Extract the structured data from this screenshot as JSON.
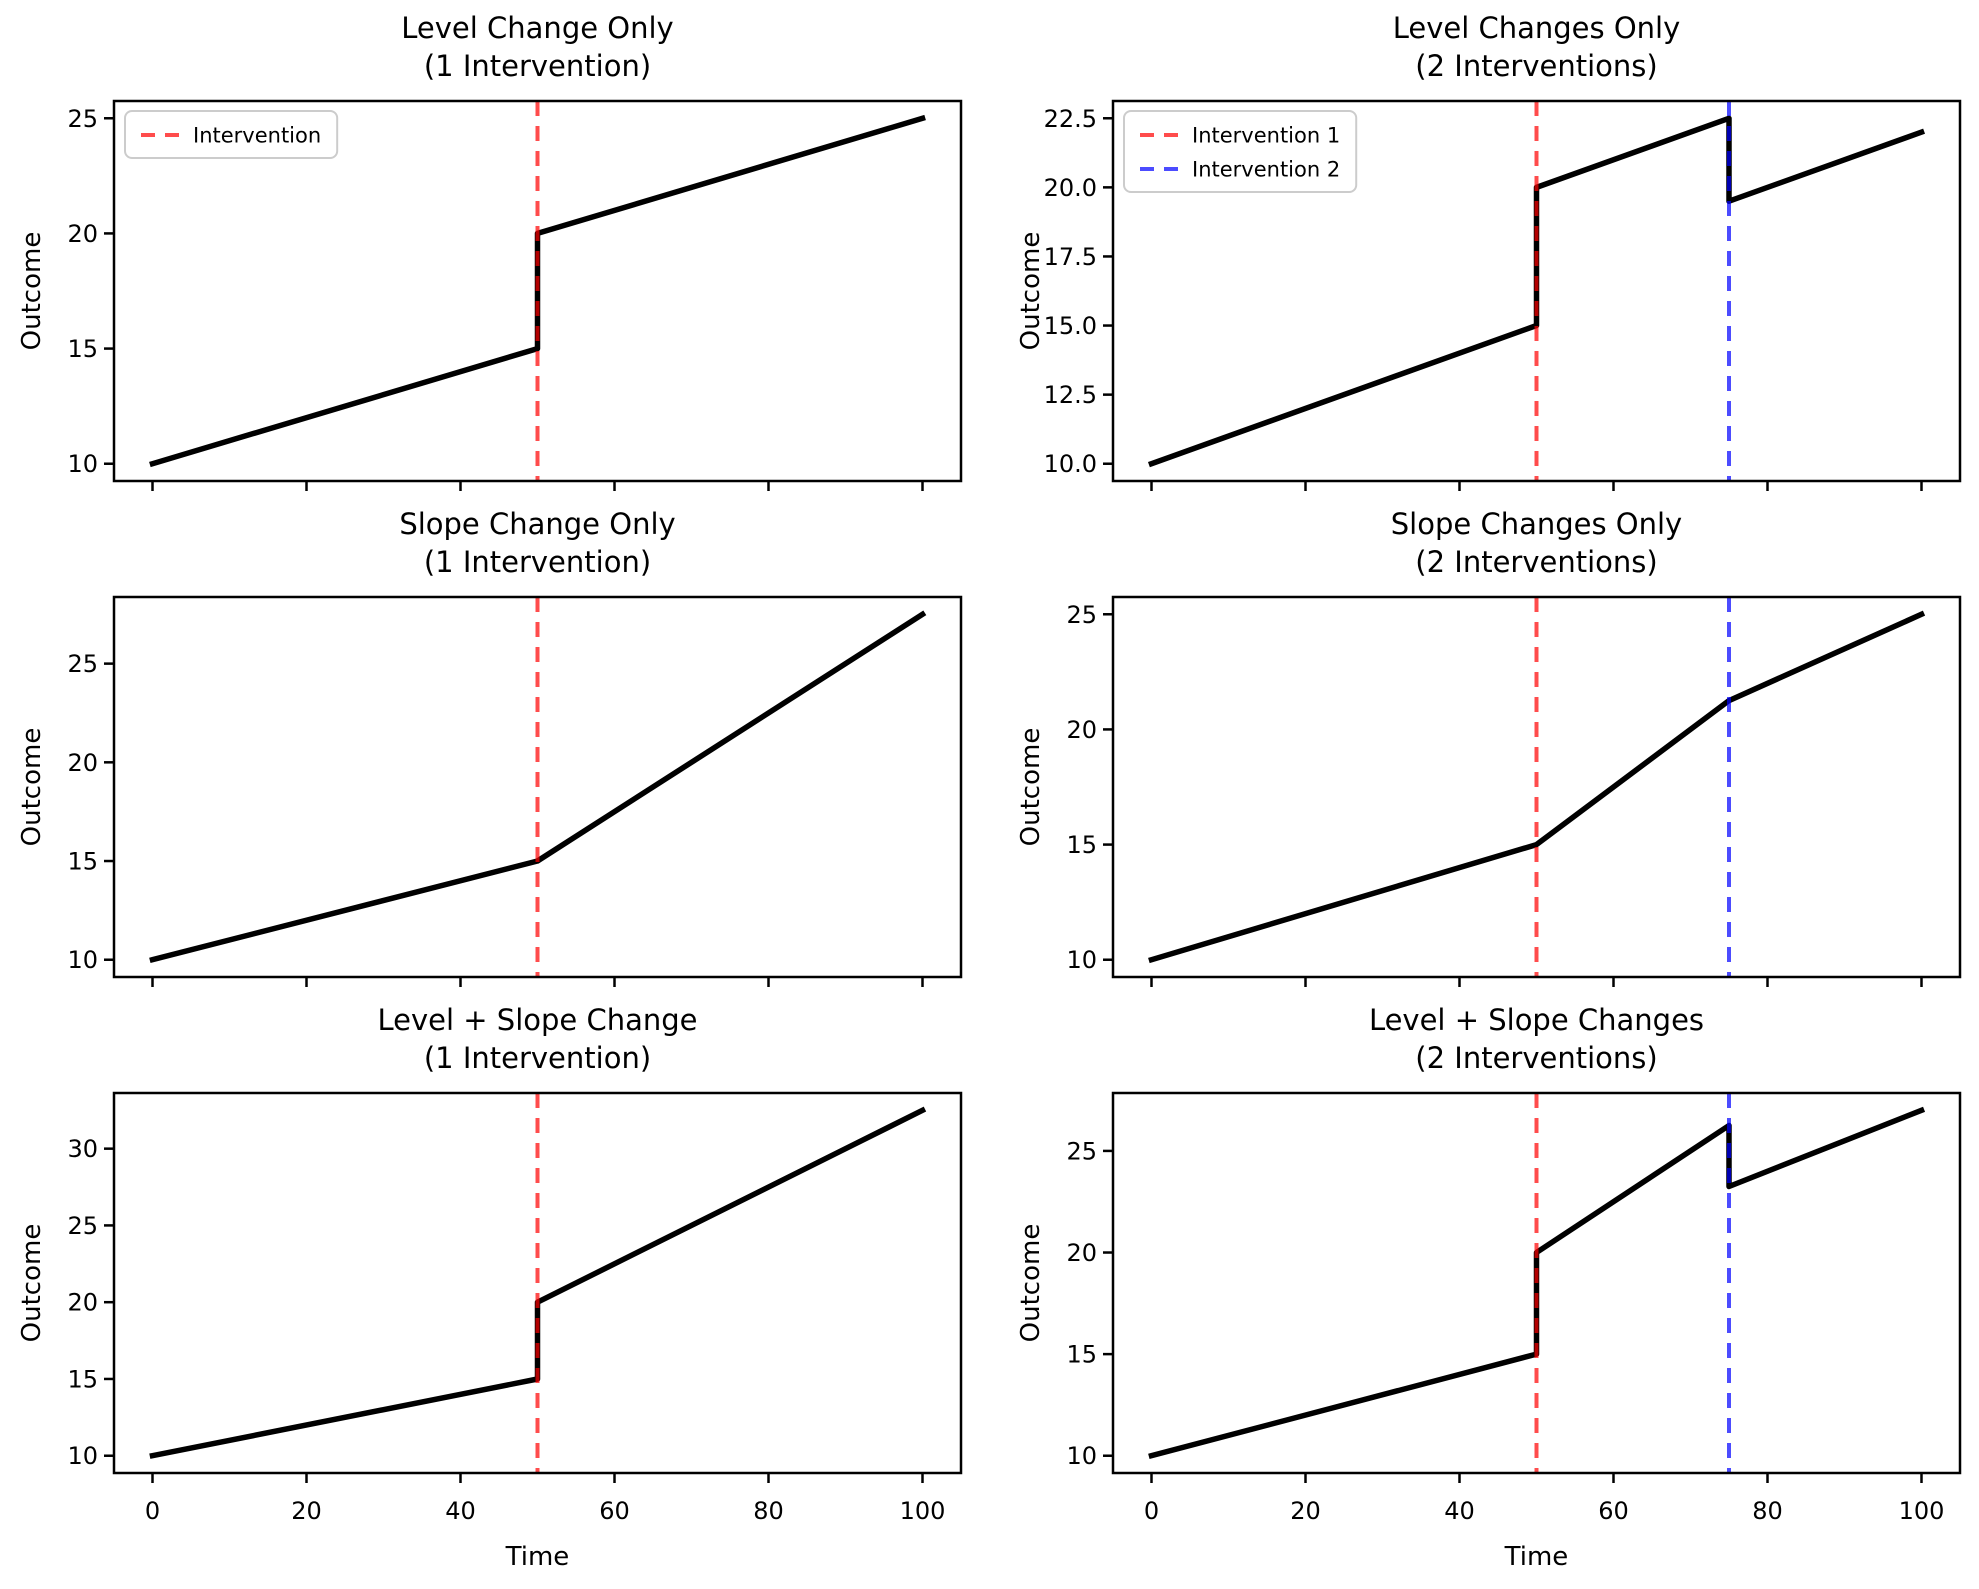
{
  "figure": {
    "background": "#ffffff",
    "grid": "3 rows x 2 columns",
    "description": "Interrupted time series intervention patterns"
  },
  "colors": {
    "series_line": "#000000",
    "intervention_1": "rgba(255,0,0,0.7)",
    "intervention_2": "rgba(0,0,255,0.7)",
    "legend_border": "#cccccc",
    "legend_background": "#ffffff",
    "axes_frame": "#000000"
  },
  "chart_data": [
    {
      "type": "line",
      "title": "Level Change Only",
      "subtitle": "(1 Intervention)",
      "ylabel": "Outcome",
      "xlim": [
        -5,
        105
      ],
      "ylim": [
        9.25,
        25.75
      ],
      "x_ticks": [
        0,
        20,
        40,
        60,
        80,
        100
      ],
      "x_tick_labels": [],
      "y_ticks": [
        10,
        15,
        20,
        25
      ],
      "y_tick_labels": [
        "10",
        "15",
        "20",
        "25"
      ],
      "series": [
        {
          "name": "Outcome",
          "color": "#000000",
          "points": [
            [
              0,
              10
            ],
            [
              50,
              15
            ],
            [
              50,
              20
            ],
            [
              100,
              25
            ]
          ]
        }
      ],
      "interventions": [
        {
          "x": 50,
          "color": "rgba(255,0,0,0.7)",
          "label": "Intervention"
        }
      ],
      "legend": {
        "visible": true,
        "entries": [
          {
            "label": "Intervention",
            "color": "rgba(255,0,0,0.7)"
          }
        ]
      }
    },
    {
      "type": "line",
      "title": "Level Changes Only",
      "subtitle": "(2 Interventions)",
      "ylabel": "Outcome",
      "xlim": [
        -5,
        105
      ],
      "ylim": [
        9.375,
        23.125
      ],
      "x_ticks": [
        0,
        20,
        40,
        60,
        80,
        100
      ],
      "x_tick_labels": [],
      "y_ticks": [
        10,
        12.5,
        15,
        17.5,
        20,
        22.5
      ],
      "y_tick_labels": [
        "10.0",
        "12.5",
        "15.0",
        "17.5",
        "20.0",
        "22.5"
      ],
      "series": [
        {
          "name": "Outcome",
          "color": "#000000",
          "points": [
            [
              0,
              10
            ],
            [
              50,
              15
            ],
            [
              50,
              20
            ],
            [
              75,
              22.5
            ],
            [
              75,
              19.5
            ],
            [
              100,
              22
            ]
          ]
        }
      ],
      "interventions": [
        {
          "x": 50,
          "color": "rgba(255,0,0,0.7)",
          "label": "Intervention 1"
        },
        {
          "x": 75,
          "color": "rgba(0,0,255,0.7)",
          "label": "Intervention 2"
        }
      ],
      "legend": {
        "visible": true,
        "entries": [
          {
            "label": "Intervention 1",
            "color": "rgba(255,0,0,0.7)"
          },
          {
            "label": "Intervention 2",
            "color": "rgba(0,0,255,0.7)"
          }
        ]
      }
    },
    {
      "type": "line",
      "title": "Slope Change Only",
      "subtitle": "(1 Intervention)",
      "ylabel": "Outcome",
      "xlim": [
        -5,
        105
      ],
      "ylim": [
        9.125,
        28.375
      ],
      "x_ticks": [
        0,
        20,
        40,
        60,
        80,
        100
      ],
      "x_tick_labels": [],
      "y_ticks": [
        10,
        15,
        20,
        25
      ],
      "y_tick_labels": [
        "10",
        "15",
        "20",
        "25"
      ],
      "series": [
        {
          "name": "Outcome",
          "color": "#000000",
          "points": [
            [
              0,
              10
            ],
            [
              50,
              15
            ],
            [
              100,
              27.5
            ]
          ]
        }
      ],
      "interventions": [
        {
          "x": 50,
          "color": "rgba(255,0,0,0.7)"
        }
      ],
      "legend": {
        "visible": false,
        "entries": []
      }
    },
    {
      "type": "line",
      "title": "Slope Changes Only",
      "subtitle": "(2 Interventions)",
      "ylabel": "Outcome",
      "xlim": [
        -5,
        105
      ],
      "ylim": [
        9.25,
        25.75
      ],
      "x_ticks": [
        0,
        20,
        40,
        60,
        80,
        100
      ],
      "x_tick_labels": [],
      "y_ticks": [
        10,
        15,
        20,
        25
      ],
      "y_tick_labels": [
        "10",
        "15",
        "20",
        "25"
      ],
      "series": [
        {
          "name": "Outcome",
          "color": "#000000",
          "points": [
            [
              0,
              10
            ],
            [
              50,
              15
            ],
            [
              75,
              21.25
            ],
            [
              100,
              25
            ]
          ]
        }
      ],
      "interventions": [
        {
          "x": 50,
          "color": "rgba(255,0,0,0.7)"
        },
        {
          "x": 75,
          "color": "rgba(0,0,255,0.7)"
        }
      ],
      "legend": {
        "visible": false,
        "entries": []
      }
    },
    {
      "type": "line",
      "title": "Level + Slope Change",
      "subtitle": "(1 Intervention)",
      "ylabel": "Outcome",
      "xlabel": "Time",
      "xlim": [
        -5,
        105
      ],
      "ylim": [
        8.875,
        33.625
      ],
      "x_ticks": [
        0,
        20,
        40,
        60,
        80,
        100
      ],
      "x_tick_labels": [
        "0",
        "20",
        "40",
        "60",
        "80",
        "100"
      ],
      "y_ticks": [
        10,
        15,
        20,
        25,
        30
      ],
      "y_tick_labels": [
        "10",
        "15",
        "20",
        "25",
        "30"
      ],
      "series": [
        {
          "name": "Outcome",
          "color": "#000000",
          "points": [
            [
              0,
              10
            ],
            [
              50,
              15
            ],
            [
              50,
              20
            ],
            [
              100,
              32.5
            ]
          ]
        }
      ],
      "interventions": [
        {
          "x": 50,
          "color": "rgba(255,0,0,0.7)"
        }
      ],
      "legend": {
        "visible": false,
        "entries": []
      }
    },
    {
      "type": "line",
      "title": "Level + Slope Changes",
      "subtitle": "(2 Interventions)",
      "ylabel": "Outcome",
      "xlabel": "Time",
      "xlim": [
        -5,
        105
      ],
      "ylim": [
        9.15,
        27.85
      ],
      "x_ticks": [
        0,
        20,
        40,
        60,
        80,
        100
      ],
      "x_tick_labels": [
        "0",
        "20",
        "40",
        "60",
        "80",
        "100"
      ],
      "y_ticks": [
        10,
        15,
        20,
        25
      ],
      "y_tick_labels": [
        "10",
        "15",
        "20",
        "25"
      ],
      "series": [
        {
          "name": "Outcome",
          "color": "#000000",
          "points": [
            [
              0,
              10
            ],
            [
              50,
              15
            ],
            [
              50,
              20
            ],
            [
              75,
              26.25
            ],
            [
              75,
              23.25
            ],
            [
              100,
              27
            ]
          ]
        }
      ],
      "interventions": [
        {
          "x": 50,
          "color": "rgba(255,0,0,0.7)"
        },
        {
          "x": 75,
          "color": "rgba(0,0,255,0.7)"
        }
      ],
      "legend": {
        "visible": false,
        "entries": []
      }
    }
  ]
}
